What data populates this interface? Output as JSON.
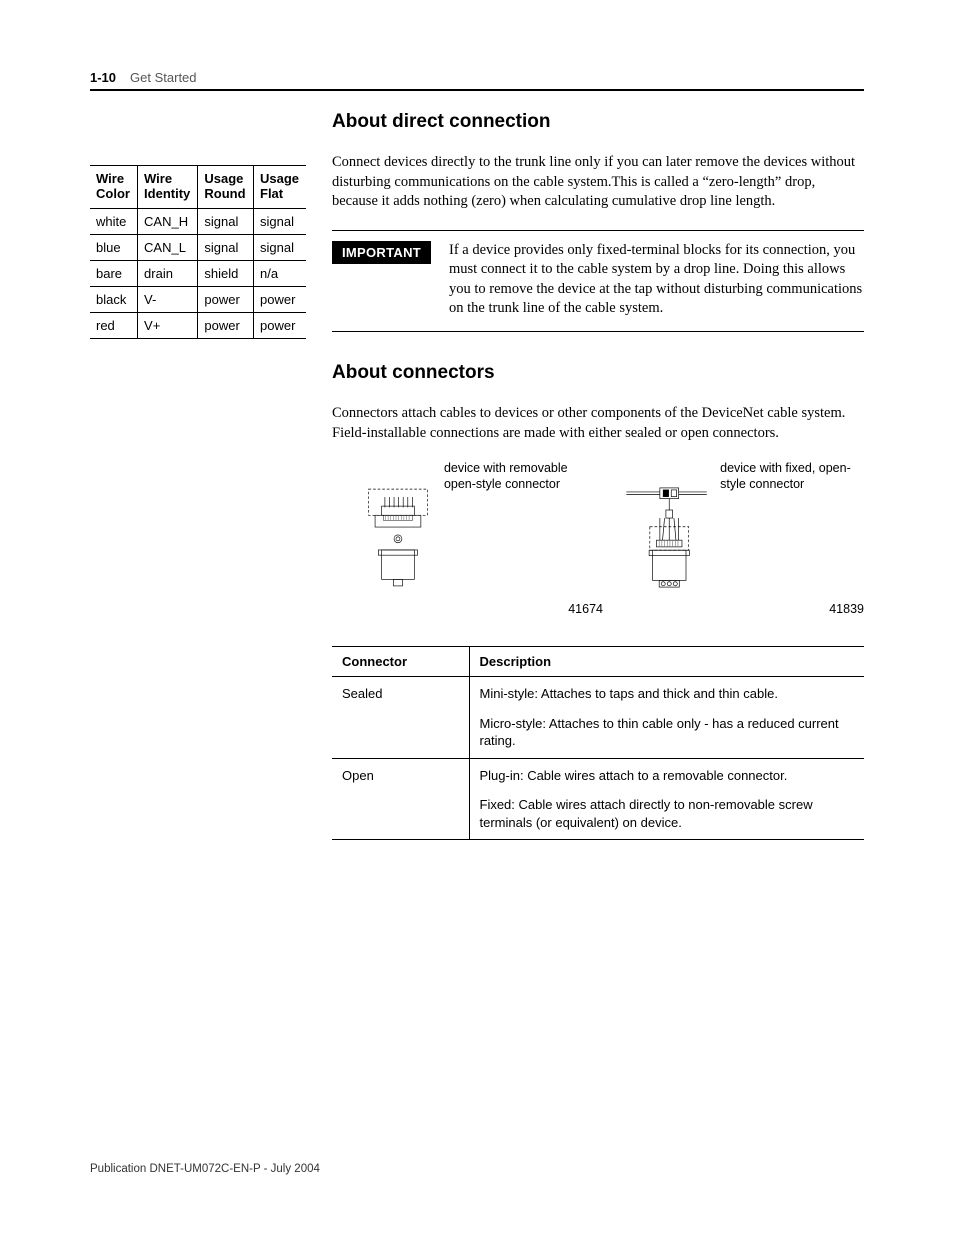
{
  "header": {
    "page_number": "1-10",
    "chapter_title": "Get Started"
  },
  "wire_table": {
    "headers": [
      "Wire Color",
      "Wire Identity",
      "Usage Round",
      "Usage Flat"
    ],
    "rows": [
      [
        "white",
        "CAN_H",
        "signal",
        "signal"
      ],
      [
        "blue",
        "CAN_L",
        "signal",
        "signal"
      ],
      [
        "bare",
        "drain",
        "shield",
        "n/a"
      ],
      [
        "black",
        "V-",
        "power",
        "power"
      ],
      [
        "red",
        "V+",
        "power",
        "power"
      ]
    ]
  },
  "section1": {
    "title": "About direct connection",
    "body": "Connect devices directly to the trunk line only if you can later remove the devices without disturbing communications on the cable system.This is called a “zero-length” drop, because it adds nothing (zero) when calculating cumulative drop line length."
  },
  "important": {
    "label": "IMPORTANT",
    "text": "If a device provides only fixed-terminal blocks for its connection, you must connect it to the cable system by a drop line. Doing this allows you to remove the device at the tap without disturbing communications on the trunk line of the cable system."
  },
  "section2": {
    "title": "About connectors",
    "body": "Connectors attach cables to devices or other components of the DeviceNet cable system. Field-installable connections are made with either sealed or open connectors."
  },
  "figures": {
    "left": {
      "caption": "device with removable open-style connector",
      "num": "41674"
    },
    "right": {
      "caption": "device with fixed, open-style connector",
      "num": "41839"
    }
  },
  "conn_table": {
    "headers": [
      "Connector",
      "Description"
    ],
    "rows": [
      {
        "c1": "Sealed",
        "c2": [
          "Mini-style: Attaches to taps and thick and thin cable.",
          "Micro-style: Attaches to thin cable only - has a reduced current rating."
        ]
      },
      {
        "c1": "Open",
        "c2": [
          "Plug-in: Cable wires attach to a removable connector.",
          "Fixed: Cable wires attach directly to non-removable screw terminals (or equivalent) on device."
        ]
      }
    ]
  },
  "footer": {
    "text": "Publication DNET-UM072C-EN-P - July 2004"
  }
}
